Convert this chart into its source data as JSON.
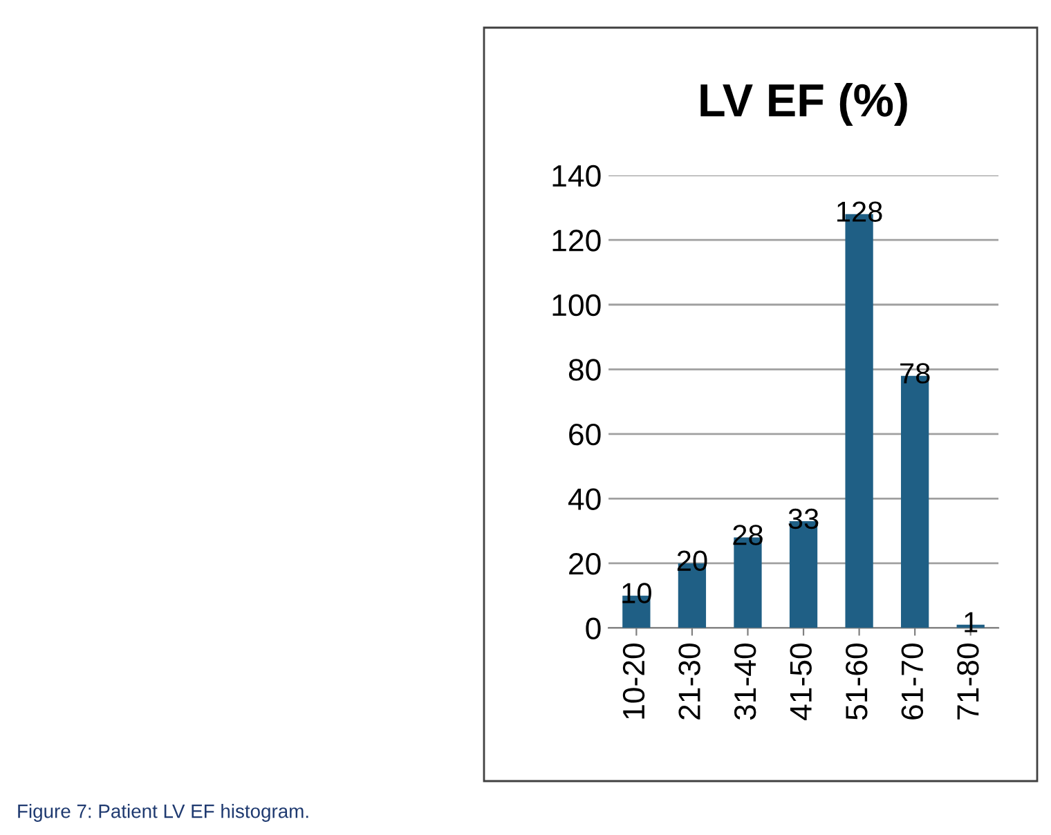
{
  "chart_data": {
    "type": "bar",
    "title": "LV EF (%)",
    "categories": [
      "10-20",
      "21-30",
      "31-40",
      "41-50",
      "51-60",
      "61-70",
      "71-80"
    ],
    "values": [
      10,
      20,
      28,
      33,
      128,
      78,
      1
    ],
    "color": "#1f5f85",
    "ylim": [
      0,
      140
    ],
    "yticks": [
      0,
      20,
      40,
      60,
      80,
      100,
      120,
      140
    ],
    "grid": "y",
    "data_labels": true,
    "legend": false,
    "annotations": [
      "Figure 7: Patient LV EF histogram."
    ]
  }
}
